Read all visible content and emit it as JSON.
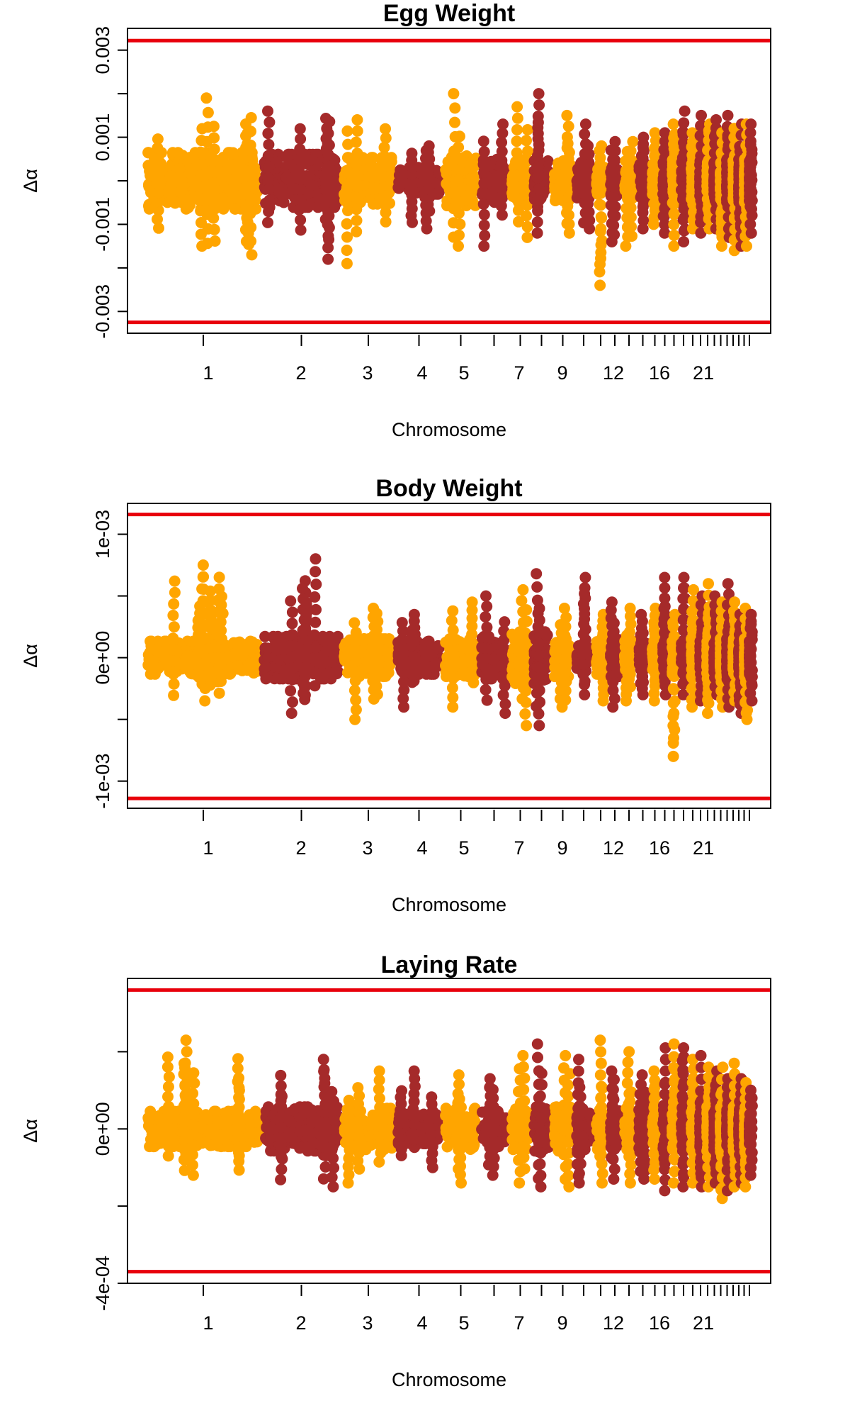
{
  "figure": {
    "panel_count": 3,
    "colors": {
      "odd_chromosome": "#FFA500",
      "even_chromosome": "#A52A2A",
      "threshold": "#E8000B",
      "axis": "#000000"
    }
  },
  "chart_data": [
    {
      "type": "scatter",
      "title": "Egg Weight",
      "xlabel": "Chromosome",
      "ylabel": "Δα",
      "chromosomes": [
        1,
        2,
        3,
        4,
        5,
        6,
        7,
        8,
        9,
        10,
        11,
        12,
        13,
        14,
        15,
        16,
        17,
        18,
        19,
        20,
        21,
        22,
        23,
        24,
        25,
        26,
        27,
        28
      ],
      "x_tick_labels": [
        "1",
        "2",
        "3",
        "4",
        "5",
        "7",
        "9",
        "12",
        "16",
        "21"
      ],
      "y_ticks": [
        -0.003,
        -0.002,
        -0.001,
        0,
        0.001,
        0.002,
        0.003
      ],
      "y_tick_labels": [
        "-0.003",
        "",
        "-0.001",
        "",
        "0.001",
        "",
        "0.003"
      ],
      "ylim": [
        -0.0035,
        0.0035
      ],
      "thresholds": [
        0.00322,
        -0.00325
      ],
      "series": [
        {
          "chromosome_group": "odd",
          "color": "#FFA500"
        },
        {
          "chromosome_group": "even",
          "color": "#A52A2A"
        }
      ],
      "chromosome_ranges": [
        [
          -0.0017,
          0.0019
        ],
        [
          -0.0018,
          0.0016
        ],
        [
          -0.0019,
          0.0014
        ],
        [
          -0.0011,
          0.0008
        ],
        [
          -0.0015,
          0.002
        ],
        [
          -0.0015,
          0.0013
        ],
        [
          -0.0013,
          0.0017
        ],
        [
          -0.0012,
          0.002
        ],
        [
          -0.0012,
          0.0015
        ],
        [
          -0.0011,
          0.0013
        ],
        [
          -0.0024,
          0.0008
        ],
        [
          -0.0014,
          0.0009
        ],
        [
          -0.0015,
          0.0009
        ],
        [
          -0.0011,
          0.001
        ],
        [
          -0.001,
          0.0011
        ],
        [
          -0.0012,
          0.0011
        ],
        [
          -0.0015,
          0.0013
        ],
        [
          -0.0014,
          0.0016
        ],
        [
          -0.0011,
          0.0011
        ],
        [
          -0.0012,
          0.0015
        ],
        [
          -0.0011,
          0.0013
        ],
        [
          -0.0011,
          0.0014
        ],
        [
          -0.0015,
          0.0011
        ],
        [
          -0.0013,
          0.0015
        ],
        [
          -0.0016,
          0.0012
        ],
        [
          -0.0015,
          0.0013
        ],
        [
          -0.0015,
          0.0013
        ],
        [
          -0.0012,
          0.0013
        ]
      ]
    },
    {
      "type": "scatter",
      "title": "Body Weight",
      "xlabel": "Chromosome",
      "ylabel": "Δα",
      "chromosomes": [
        1,
        2,
        3,
        4,
        5,
        6,
        7,
        8,
        9,
        10,
        11,
        12,
        13,
        14,
        15,
        16,
        17,
        18,
        19,
        20,
        21,
        22,
        23,
        24,
        25,
        26,
        27,
        28
      ],
      "x_tick_labels": [
        "1",
        "2",
        "3",
        "4",
        "5",
        "7",
        "9",
        "12",
        "16",
        "21"
      ],
      "y_ticks": [
        -0.001,
        -0.0005,
        0,
        0.0005,
        0.001
      ],
      "y_tick_labels": [
        "-1e-03",
        "",
        "0e+00",
        "",
        "1e-03"
      ],
      "ylim": [
        -0.00122,
        0.00125
      ],
      "thresholds": [
        0.00116,
        -0.00114
      ],
      "series": [
        {
          "chromosome_group": "odd",
          "color": "#FFA500"
        },
        {
          "chromosome_group": "even",
          "color": "#A52A2A"
        }
      ],
      "chromosome_ranges": [
        [
          -0.00035,
          0.00075
        ],
        [
          -0.00045,
          0.0008
        ],
        [
          -0.0005,
          0.0004
        ],
        [
          -0.0004,
          0.00035
        ],
        [
          -0.0004,
          0.00045
        ],
        [
          -0.00045,
          0.0005
        ],
        [
          -0.00055,
          0.00055
        ],
        [
          -0.00055,
          0.00068
        ],
        [
          -0.0004,
          0.0004
        ],
        [
          -0.0003,
          0.00065
        ],
        [
          -0.00035,
          0.00035
        ],
        [
          -0.0004,
          0.00045
        ],
        [
          -0.00035,
          0.0004
        ],
        [
          -0.0003,
          0.00035
        ],
        [
          -0.00035,
          0.0004
        ],
        [
          -0.0003,
          0.00065
        ],
        [
          -0.0008,
          0.00035
        ],
        [
          -0.0003,
          0.00065
        ],
        [
          -0.0004,
          0.00055
        ],
        [
          -0.00035,
          0.0005
        ],
        [
          -0.00045,
          0.0006
        ],
        [
          -0.0003,
          0.0005
        ],
        [
          -0.0004,
          0.00045
        ],
        [
          -0.0004,
          0.0006
        ],
        [
          -0.00035,
          0.00045
        ],
        [
          -0.00045,
          0.00035
        ],
        [
          -0.0005,
          0.0004
        ],
        [
          -0.00035,
          0.00035
        ]
      ]
    },
    {
      "type": "scatter",
      "title": "Laying Rate",
      "xlabel": "Chromosome",
      "ylabel": "Δα",
      "chromosomes": [
        1,
        2,
        3,
        4,
        5,
        6,
        7,
        8,
        9,
        10,
        11,
        12,
        13,
        14,
        15,
        16,
        17,
        18,
        19,
        20,
        21,
        22,
        23,
        24,
        25,
        26,
        27,
        28
      ],
      "x_tick_labels": [
        "1",
        "2",
        "3",
        "4",
        "5",
        "7",
        "9",
        "12",
        "16",
        "21"
      ],
      "y_ticks": [
        -0.0004,
        -0.0002,
        0,
        0.0002
      ],
      "y_tick_labels": [
        "-4e-04",
        "",
        "0e+00",
        ""
      ],
      "ylim": [
        -0.0004,
        0.00039
      ],
      "thresholds": [
        0.00036,
        -0.00037
      ],
      "series": [
        {
          "chromosome_group": "odd",
          "color": "#FFA500"
        },
        {
          "chromosome_group": "even",
          "color": "#A52A2A"
        }
      ],
      "chromosome_ranges": [
        [
          -0.00012,
          0.00023
        ],
        [
          -0.00015,
          0.00018
        ],
        [
          -0.00014,
          0.00015
        ],
        [
          -0.0001,
          0.00015
        ],
        [
          -0.00014,
          0.00014
        ],
        [
          -0.00012,
          0.00013
        ],
        [
          -0.00014,
          0.00019
        ],
        [
          -0.00015,
          0.00022
        ],
        [
          -0.00015,
          0.00019
        ],
        [
          -0.00014,
          0.00018
        ],
        [
          -0.00014,
          0.00023
        ],
        [
          -0.00013,
          0.00015
        ],
        [
          -0.00014,
          0.0002
        ],
        [
          -0.00013,
          0.00014
        ],
        [
          -0.00013,
          0.00015
        ],
        [
          -0.00016,
          0.00021
        ],
        [
          -0.00014,
          0.00022
        ],
        [
          -0.00015,
          0.00021
        ],
        [
          -0.00014,
          0.00018
        ],
        [
          -0.00015,
          0.00019
        ],
        [
          -0.00015,
          0.00016
        ],
        [
          -0.00014,
          0.00015
        ],
        [
          -0.00018,
          0.00016
        ],
        [
          -0.00016,
          0.00013
        ],
        [
          -0.00015,
          0.00017
        ],
        [
          -0.00014,
          0.00013
        ],
        [
          -0.00015,
          0.00012
        ],
        [
          -0.00012,
          0.0001
        ]
      ]
    }
  ]
}
